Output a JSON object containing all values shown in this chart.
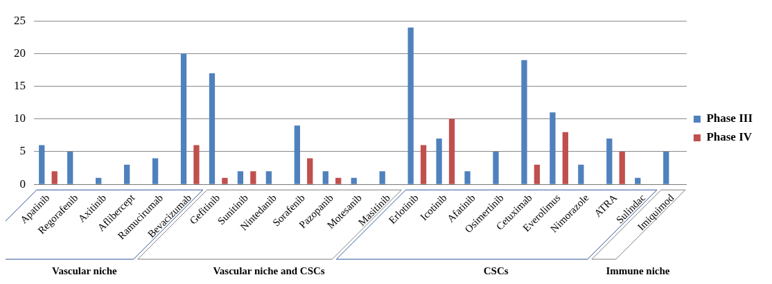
{
  "chart_data": {
    "type": "bar",
    "categories": [
      "Apatinib",
      "Regorafenib",
      "Axitinib",
      "Aflibercept",
      "Ramucirumab",
      "Bevacizumab",
      "Gefitinib",
      "Sunitinib",
      "Nintedanib",
      "Sorafenib",
      "Pazopanib",
      "Motesanib",
      "Masitinib",
      "Erlotinib",
      "Icotinib",
      "Afatinib",
      "Osimertinib",
      "Cetuximab",
      "Everolimus",
      "Nimorazole",
      "ATRA",
      "Sulindac",
      "Imiquimod"
    ],
    "series": [
      {
        "name": "Phase III",
        "color": "#4f81bd",
        "values": [
          6,
          5,
          1,
          3,
          4,
          20,
          17,
          2,
          2,
          9,
          2,
          1,
          2,
          24,
          7,
          2,
          5,
          19,
          11,
          3,
          7,
          1,
          5
        ]
      },
      {
        "name": "Phase IV",
        "color": "#c0504d",
        "values": [
          2,
          0,
          0,
          0,
          0,
          6,
          1,
          2,
          0,
          4,
          1,
          0,
          0,
          6,
          10,
          0,
          0,
          3,
          8,
          0,
          5,
          0,
          0
        ]
      }
    ],
    "ylim": [
      0,
      25
    ],
    "yticks": [
      0,
      5,
      10,
      15,
      20,
      25
    ],
    "grid": "y",
    "legend": "right",
    "annotations": [
      "Vascular niche",
      "Vascular niche and CSCs",
      "CSCs",
      "Immune niche"
    ]
  }
}
